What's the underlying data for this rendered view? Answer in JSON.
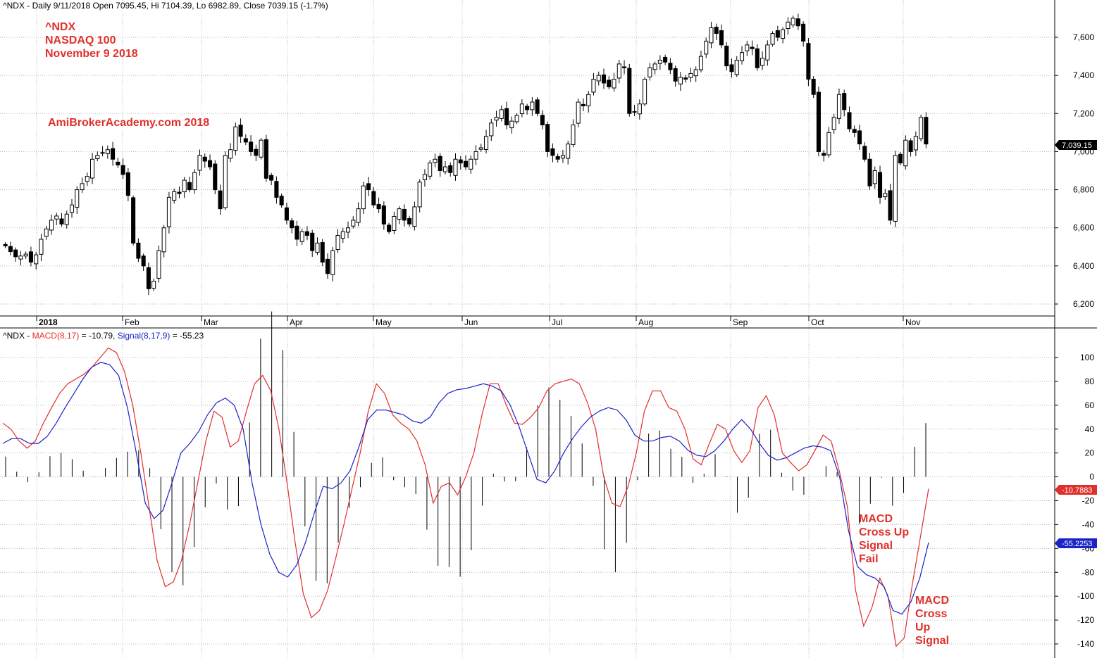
{
  "header": {
    "price_info": "^NDX - Daily 9/11/2018 Open 7095.45, Hi 7104.39, Lo 6982.89, Close 7039.15 (-1.7%)",
    "macd_prefix": "^NDX - ",
    "macd_label": "MACD(8,17)",
    "macd_value": " = -10.79, ",
    "signal_label": "Signal(8,17,9)",
    "signal_value": " = -55.23"
  },
  "annotations": {
    "ticker": "^NDX",
    "index_name": "NASDAQ 100",
    "date": "November 9 2018",
    "watermark": "AmiBrokerAcademy.com  2018",
    "fail_note": [
      "MACD",
      "Cross Up",
      "Signal",
      "Fail"
    ],
    "cross_note": [
      "MACD",
      "Cross",
      "Up",
      "Signal"
    ]
  },
  "badges": {
    "last_price": "7,039.15",
    "macd_last": "-10.7883",
    "signal_last": "-55.2253"
  },
  "colors": {
    "macd": "#e0302c",
    "signal": "#1a22c8",
    "annotation": "#e0302c",
    "price_badge": "#000000"
  },
  "chart_data": [
    {
      "type": "candlestick",
      "y_ticks": [
        6200,
        6400,
        6600,
        6800,
        7000,
        7200,
        7400,
        7600
      ],
      "ylim": [
        6140,
        7780
      ],
      "x_labels": [
        "2018",
        "Feb",
        "Mar",
        "Apr",
        "May",
        "Jun",
        "Jul",
        "Aug",
        "Sep",
        "Oct",
        "Nov"
      ],
      "grid": true,
      "close": [
        6505,
        6475,
        6448,
        6452,
        6462,
        6420,
        6458,
        6540,
        6594,
        6640,
        6662,
        6620,
        6672,
        6720,
        6800,
        6832,
        6870,
        6960,
        6980,
        6995,
        7010,
        6960,
        6930,
        6880,
        6770,
        6520,
        6440,
        6400,
        6280,
        6320,
        6480,
        6600,
        6760,
        6790,
        6780,
        6850,
        6800,
        6890,
        6980,
        6950,
        6920,
        6800,
        6700,
        6980,
        7010,
        7130,
        7080,
        7050,
        7000,
        6980,
        7060,
        6860,
        6850,
        6760,
        6720,
        6640,
        6600,
        6540,
        6580,
        6560,
        6480,
        6520,
        6420,
        6360,
        6480,
        6560,
        6580,
        6600,
        6640,
        6700,
        6820,
        6800,
        6720,
        6700,
        6620,
        6580,
        6660,
        6700,
        6640,
        6620,
        6710,
        6840,
        6880,
        6940,
        6960,
        6900,
        6920,
        6890,
        6960,
        6940,
        6920,
        6960,
        7000,
        7020,
        7080,
        7150,
        7180,
        7220,
        7140,
        7160,
        7190,
        7250,
        7220,
        7260,
        7200,
        7140,
        7000,
        6980,
        6960,
        6980,
        7040,
        7140,
        7260,
        7240,
        7300,
        7380,
        7400,
        7360,
        7340,
        7380,
        7460,
        7440,
        7200,
        7210,
        7250,
        7380,
        7440,
        7460,
        7480,
        7470,
        7430,
        7370,
        7390,
        7380,
        7410,
        7430,
        7500,
        7580,
        7650,
        7620,
        7560,
        7450,
        7420,
        7480,
        7520,
        7560,
        7540,
        7440,
        7490,
        7560,
        7620,
        7600,
        7640,
        7680,
        7700,
        7660,
        7580,
        7380,
        7300,
        7000,
        6980,
        7100,
        7180,
        7300,
        7220,
        7120,
        7100,
        7040,
        6960,
        6820,
        6900,
        6760,
        6780,
        6640,
        6980,
        6940,
        7060,
        7000,
        7080,
        7180,
        7040
      ]
    },
    {
      "type": "line",
      "title": "MACD(8,17) / Signal(8,17,9)",
      "y_ticks": [
        100,
        80,
        60,
        40,
        20,
        0,
        -20,
        -40,
        -60,
        -80,
        -100,
        -120,
        -140
      ],
      "ylim": [
        -150,
        110
      ],
      "series": [
        {
          "name": "MACD(8,17)",
          "values": [
            45,
            40,
            30,
            24,
            30,
            45,
            58,
            70,
            78,
            82,
            86,
            92,
            100,
            108,
            104,
            88,
            60,
            20,
            -25,
            -70,
            -92,
            -88,
            -70,
            -40,
            -5,
            30,
            55,
            50,
            25,
            30,
            55,
            78,
            85,
            72,
            40,
            -5,
            -55,
            -98,
            -118,
            -112,
            -95,
            -68,
            -40,
            -10,
            20,
            55,
            78,
            70,
            52,
            45,
            40,
            30,
            10,
            -22,
            -8,
            -5,
            -15,
            0,
            20,
            52,
            78,
            78,
            60,
            45,
            44,
            50,
            58,
            72,
            78,
            80,
            82,
            78,
            62,
            40,
            0,
            -22,
            -25,
            -8,
            20,
            55,
            72,
            72,
            58,
            55,
            40,
            15,
            10,
            28,
            44,
            40,
            22,
            12,
            22,
            58,
            68,
            52,
            20,
            12,
            5,
            10,
            22,
            35,
            30,
            5,
            -25,
            -95,
            -125,
            -110,
            -85,
            -100,
            -142,
            -135,
            -90,
            -50,
            -10
          ]
        },
        {
          "name": "Signal(8,17,9)",
          "values": [
            28,
            32,
            32,
            28,
            28,
            34,
            45,
            58,
            70,
            82,
            92,
            96,
            94,
            85,
            58,
            20,
            -22,
            -35,
            -28,
            -5,
            20,
            28,
            38,
            52,
            62,
            66,
            60,
            40,
            -5,
            -40,
            -65,
            -80,
            -84,
            -74,
            -55,
            -30,
            -8,
            -10,
            -5,
            5,
            25,
            48,
            56,
            56,
            54,
            52,
            47,
            45,
            50,
            62,
            70,
            73,
            74,
            76,
            78,
            76,
            72,
            60,
            42,
            20,
            -2,
            -5,
            5,
            20,
            32,
            42,
            50,
            55,
            58,
            56,
            48,
            35,
            30,
            30,
            33,
            34,
            30,
            22,
            18,
            17,
            22,
            30,
            40,
            48,
            40,
            28,
            18,
            14,
            16,
            20,
            24,
            26,
            25,
            22,
            0,
            -45,
            -75,
            -82,
            -85,
            -92,
            -112,
            -115,
            -105,
            -85,
            -55
          ]
        }
      ]
    }
  ]
}
